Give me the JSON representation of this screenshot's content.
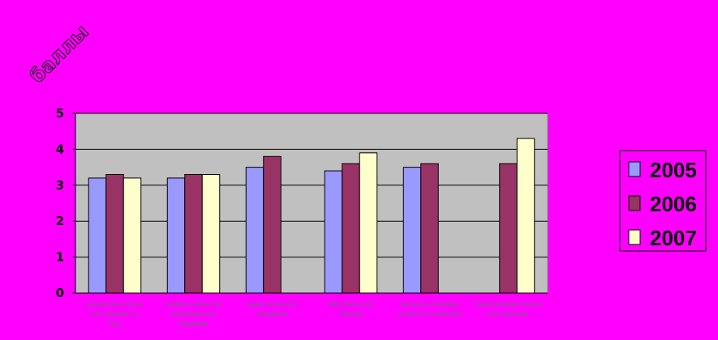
{
  "chart_data": {
    "type": "bar",
    "title": "",
    "xlabel": "",
    "ylabel": "баллы",
    "ylim": [
      0,
      5
    ],
    "yticks": [
      0,
      1,
      2,
      3,
      4,
      5
    ],
    "grid": true,
    "legend_position": "right",
    "categories": [
      "русский язык учитель Н.Б. Танькова Г.Ф. Русу",
      "алгебра учитель Н.В. Филиппова, И.В. Бондарева",
      "химия учитель Н.В. Бондарева",
      "ИЗО учитель Н.Б. Танькова",
      "биология и география учитель К.Н. Зворыгина",
      "обществознание учитель Е.В. Трапезова"
    ],
    "series": [
      {
        "name": "2005",
        "color": "#9999ff",
        "values": [
          3.2,
          3.2,
          3.5,
          3.4,
          3.5,
          null
        ]
      },
      {
        "name": "2006",
        "color": "#993366",
        "values": [
          3.3,
          3.3,
          3.8,
          3.6,
          3.6,
          3.6
        ]
      },
      {
        "name": "2007",
        "color": "#ffffcc",
        "values": [
          3.2,
          3.3,
          null,
          3.9,
          null,
          4.3
        ]
      }
    ],
    "colors": {
      "background": "#ff00ff",
      "plot_area": "#c0c0c0"
    }
  }
}
